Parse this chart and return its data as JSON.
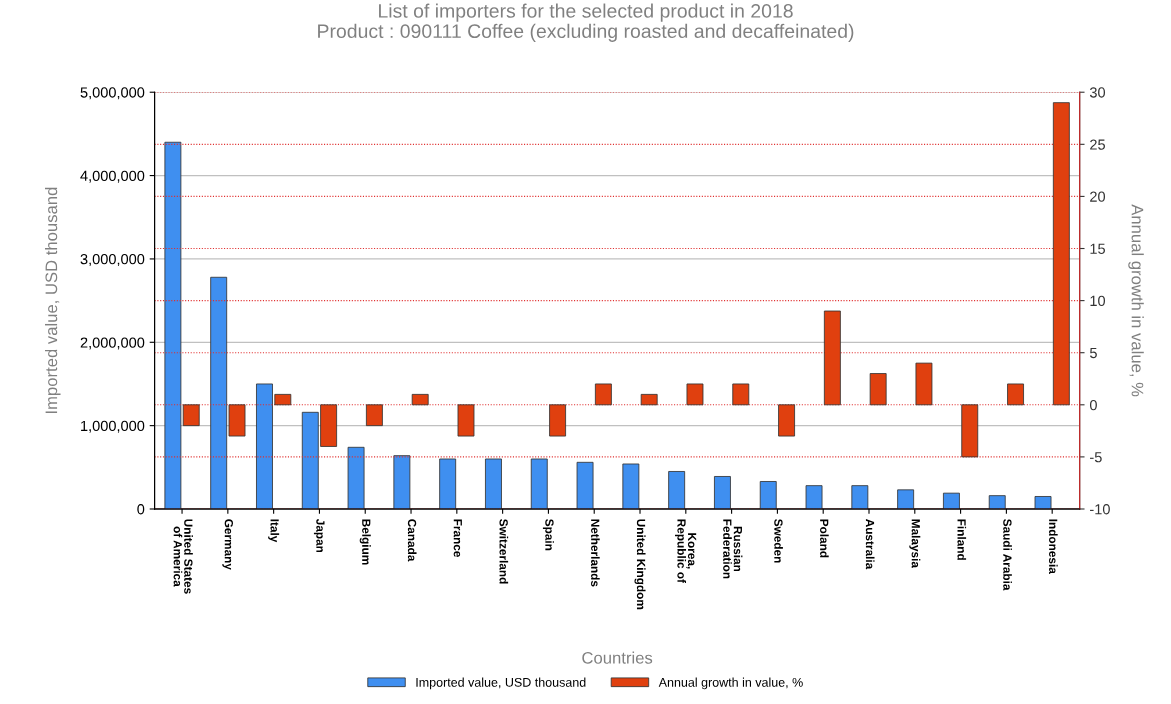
{
  "chart_data": {
    "type": "bar",
    "title": "List of importers for the selected product in 2018\nProduct : 090111 Coffee (excluding roasted and decaffeinated)",
    "xlabel": "Countries",
    "ylabel": "Imported value, USD thousand",
    "y2label": "Annual growth in value, %",
    "categories": [
      "United States\nof America",
      "Germany",
      "Italy",
      "Japan",
      "Belgium",
      "Canada",
      "France",
      "Switzerland",
      "Spain",
      "Netherlands",
      "United Kingdom",
      "Korea,\nRepublic of",
      "Russian\nFederation",
      "Sweden",
      "Poland",
      "Australia",
      "Malaysia",
      "Finland",
      "Saudi Arabia",
      "Indonesia"
    ],
    "series": [
      {
        "name": "Imported value, USD thousand",
        "color": "#3f8ff0",
        "values": [
          4400000,
          2780000,
          1500000,
          1160000,
          740000,
          640000,
          600000,
          600000,
          600000,
          560000,
          540000,
          450000,
          390000,
          330000,
          280000,
          280000,
          230000,
          190000,
          160000,
          150000
        ]
      },
      {
        "name": "Annual growth in value, %",
        "color": "#e0400f",
        "axis": "y2",
        "values": [
          -2,
          -3,
          1,
          -4,
          -2,
          1,
          -3,
          null,
          -3,
          2,
          1,
          2,
          2,
          -3,
          9,
          3,
          4,
          -5,
          2,
          29
        ]
      }
    ],
    "ylim": [
      0,
      5000000
    ],
    "yticks": [
      {
        "value": 0,
        "label": "0"
      },
      {
        "value": 1000000,
        "label": "1,000,000"
      },
      {
        "value": 2000000,
        "label": "2,000,000"
      },
      {
        "value": 3000000,
        "label": "3,000,000"
      },
      {
        "value": 4000000,
        "label": "4,000,000"
      },
      {
        "value": 5000000,
        "label": "5,000,000"
      }
    ],
    "y2lim": [
      -10,
      30
    ],
    "y2ticks": [
      -10,
      -5,
      0,
      5,
      10,
      15,
      20,
      25,
      30
    ],
    "grid": true,
    "legend": "bottom"
  }
}
